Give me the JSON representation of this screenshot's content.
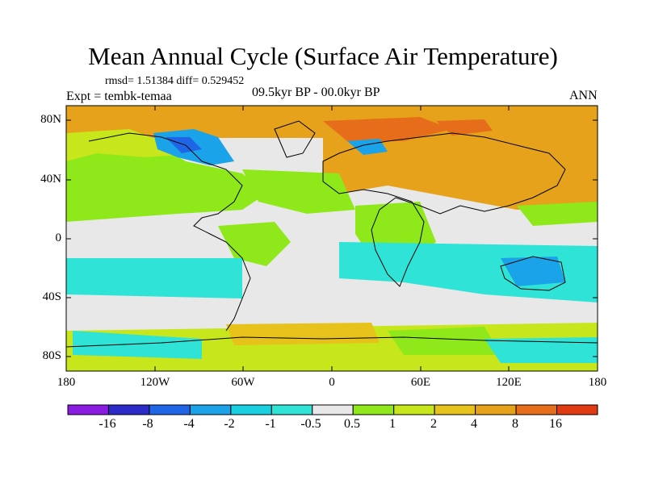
{
  "title": "Mean Annual Cycle (Surface Air Temperature)",
  "stats": "rmsd= 1.51384 diff= 0.529452",
  "expt": "Expt = tembk-temaa",
  "period": "09.5kyr BP - 00.0kyr BP",
  "season": "ANN",
  "y_ticks": [
    "80N",
    "40N",
    "0",
    "40S",
    "80S"
  ],
  "x_ticks": [
    "180",
    "120W",
    "60W",
    "0",
    "60E",
    "120E",
    "180"
  ],
  "colorbar": {
    "colors": [
      "#8a1be0",
      "#2a2ac8",
      "#1f66e6",
      "#1aa3e8",
      "#19d0e0",
      "#2fe3d6",
      "#e8e8e8",
      "#8ee81a",
      "#c8e61c",
      "#e6c21a",
      "#e6a21a",
      "#e66e1a",
      "#e03a12"
    ],
    "labels": [
      "-16",
      "-8",
      "-4",
      "-2",
      "-1",
      "-0.5",
      "0.5",
      "1",
      "2",
      "4",
      "8",
      "16"
    ]
  },
  "palette": {
    "neutral": "#e8e8e8",
    "green": "#8ee81a",
    "yellowgreen": "#c8e61c",
    "cyan": "#2fe3d6",
    "lightblue": "#1aa3e8",
    "blue": "#1f66e6",
    "orange": "#e6a21a",
    "darkorange": "#e66e1a",
    "gold": "#e6c21a"
  }
}
